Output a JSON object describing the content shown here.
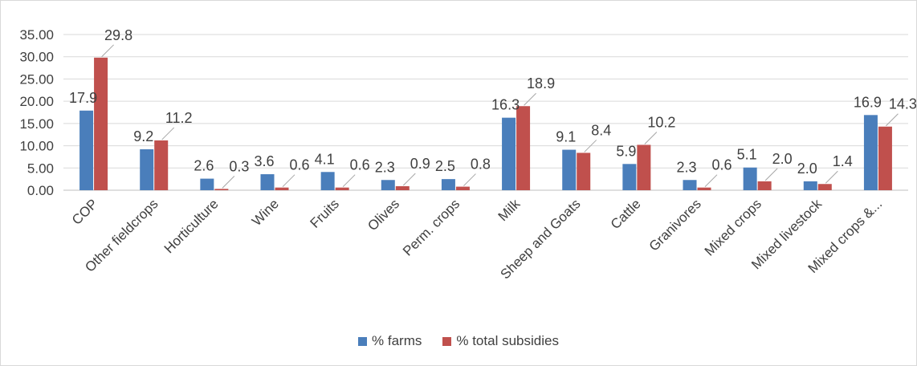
{
  "chart_data": {
    "type": "bar",
    "title": "",
    "xlabel": "",
    "ylabel": "",
    "ylim": [
      0,
      35
    ],
    "yticks": [
      "35.00",
      "30.00",
      "25.00",
      "20.00",
      "15.00",
      "10.00",
      "5.00",
      "0.00"
    ],
    "grid": "horizontal",
    "legend_position": "bottom",
    "categories": [
      "COP",
      "Other fieldcrops",
      "Horticulture",
      "Wine",
      "Fruits",
      "Olives",
      "Perm. crops",
      "Milk",
      "Sheep and Goats",
      "Cattle",
      "Granivores",
      "Mixed crops",
      "Mixed livestock",
      "Mixed crops &..."
    ],
    "series": [
      {
        "name": "% farms",
        "color": "#4a7ebb",
        "values": [
          17.9,
          9.2,
          2.6,
          3.6,
          4.1,
          2.3,
          2.5,
          16.3,
          9.1,
          5.9,
          2.3,
          5.1,
          2.0,
          16.9
        ]
      },
      {
        "name": "% total subsidies",
        "color": "#c0504d",
        "values": [
          29.8,
          11.2,
          0.3,
          0.6,
          0.6,
          0.9,
          0.8,
          18.9,
          8.4,
          10.2,
          0.6,
          2.0,
          1.4,
          14.3
        ]
      }
    ],
    "data_labels": [
      [
        "17.9",
        "9.2",
        "2.6",
        "3.6",
        "4.1",
        "2.3",
        "2.5",
        "16.3",
        "9.1",
        "5.9",
        "2.3",
        "5.1",
        "2.0",
        "16.9"
      ],
      [
        "29.8",
        "11.2",
        "0.3",
        "0.6",
        "0.6",
        "0.9",
        "0.8",
        "18.9",
        "8.4",
        "10.2",
        "0.6",
        "2.0",
        "1.4",
        "14.3"
      ]
    ]
  }
}
